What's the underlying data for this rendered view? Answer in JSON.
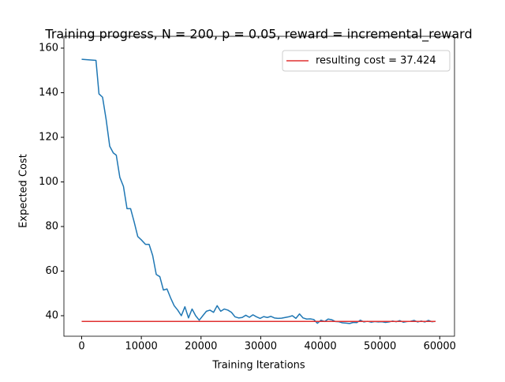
{
  "chart_data": {
    "type": "line",
    "title": "Training progress, N = 200, p = 0.05, reward = incremental_reward",
    "x_label": "Training Iterations",
    "y_label": "Expected Cost",
    "xlim": [
      -2975,
      62475
    ],
    "ylim": [
      30.8,
      165.3
    ],
    "xticks": [
      0,
      10000,
      20000,
      30000,
      40000,
      50000,
      60000
    ],
    "yticks": [
      40,
      60,
      80,
      100,
      120,
      140,
      160
    ],
    "legend_position": "upper right",
    "series": [
      {
        "name": null,
        "color": "#1f77b4",
        "x": [
          0,
          2400,
          2900,
          3500,
          4100,
          4700,
          5300,
          5800,
          6400,
          7000,
          7600,
          8200,
          8800,
          9400,
          10000,
          10700,
          11300,
          11900,
          12500,
          13100,
          13700,
          14300,
          14900,
          15500,
          16100,
          16700,
          17300,
          17900,
          18500,
          19100,
          19700,
          20300,
          20900,
          21500,
          22100,
          22700,
          23300,
          23900,
          24500,
          25100,
          25700,
          26300,
          26900,
          27500,
          28100,
          28700,
          29300,
          29900,
          30500,
          31100,
          31700,
          32300,
          32900,
          33500,
          34100,
          34700,
          35300,
          35900,
          36500,
          37100,
          37700,
          38300,
          38900,
          39500,
          40100,
          40700,
          41300,
          41900,
          42500,
          43100,
          43700,
          44300,
          44900,
          45500,
          46100,
          46700,
          47300,
          47900,
          48500,
          49100,
          49700,
          50300,
          50900,
          51500,
          52100,
          52700,
          53300,
          53900,
          54500,
          55100,
          55700,
          56300,
          56900,
          57500,
          58100,
          58700,
          59300
        ],
        "values": [
          155,
          154.5,
          139.5,
          138,
          128,
          116,
          113,
          112,
          102,
          98,
          88,
          88,
          82,
          75.5,
          74,
          72,
          72,
          67,
          58.5,
          57.5,
          51.5,
          52,
          48,
          44.5,
          42.5,
          40,
          44,
          39,
          43,
          40,
          38,
          40,
          42,
          42.5,
          41.5,
          44.5,
          42,
          43,
          42.5,
          41.5,
          39.5,
          39,
          39.2,
          40.2,
          39.3,
          40.4,
          39.5,
          38.8,
          39.6,
          39.2,
          39.7,
          39,
          38.8,
          38.9,
          39.2,
          39.5,
          40,
          38.8,
          40.8,
          39,
          38.5,
          38.6,
          38.3,
          36.6,
          38,
          37.4,
          38.5,
          38.2,
          37.4,
          37.3,
          36.8,
          36.7,
          36.5,
          37,
          36.9,
          38,
          37.2,
          37.5,
          37.1,
          37.4,
          37.2,
          37.3,
          37,
          37.2,
          37.6,
          37.3,
          37.8,
          37.1,
          37.4,
          37.5,
          37.9,
          37.2,
          37.6,
          37.2,
          37.9,
          37.3,
          37.5
        ]
      },
      {
        "name": "resulting cost = 37.424",
        "color": "#e03030",
        "x": [
          0,
          59300
        ],
        "values": [
          37.424,
          37.424
        ]
      }
    ]
  }
}
